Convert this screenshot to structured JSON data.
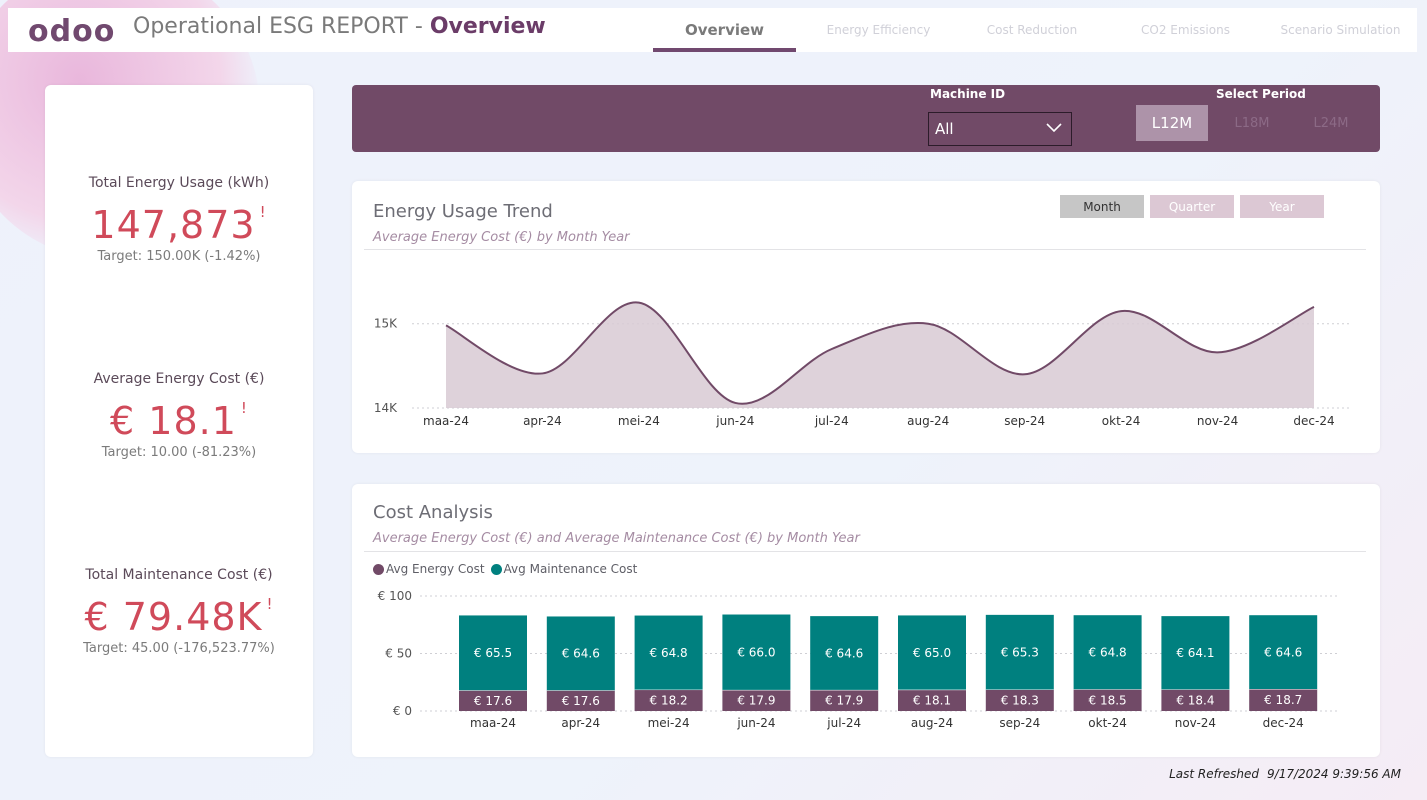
{
  "header": {
    "logo": "odoo",
    "title": "Operational ESG REPORT",
    "title_separator": " - ",
    "page": "Overview",
    "tabs": [
      "Overview",
      "Energy Efficiency",
      "Cost Reduction",
      "CO2 Emissions",
      "Scenario Simulation"
    ]
  },
  "kpis": [
    {
      "label": "Total Energy Usage (kWh)",
      "value": "147,873",
      "flag": "!",
      "target": "Target: 150.00K (-1.42%)"
    },
    {
      "label": "Average Energy Cost (€)",
      "value": "€ 18.1",
      "flag": "!",
      "target": "Target: 10.00 (-81.23%)"
    },
    {
      "label": "Total Maintenance Cost (€)",
      "value": "€ 79.48K",
      "flag": "!",
      "target": "Target: 45.00 (-176,523.77%)"
    }
  ],
  "filters": {
    "machine_label": "Machine ID",
    "machine_value": "All",
    "period_label": "Select Period",
    "periods": [
      "L12M",
      "L18M",
      "L24M"
    ],
    "selected_period": "L12M"
  },
  "energy_card": {
    "title": "Energy Usage Trend",
    "subtitle": "Average Energy Cost (€) by Month Year",
    "granularity": [
      "Month",
      "Quarter",
      "Year"
    ],
    "selected": "Month"
  },
  "cost_card": {
    "title": "Cost Analysis",
    "subtitle": "Average Energy Cost (€) and Average Maintenance Cost (€) by Month Year",
    "legend": [
      "Avg Energy Cost",
      "Avg Maintenance Cost"
    ]
  },
  "footer": {
    "label": "Last Refreshed",
    "timestamp": "9/17/2024 9:39:56 AM"
  },
  "colors": {
    "brand": "#714a67",
    "energy": "#714a67",
    "maintenance": "#00807f",
    "kpi": "#d04a5a",
    "area": "#d8cad3"
  },
  "chart_data": [
    {
      "type": "area",
      "title": "Energy Usage Trend",
      "subtitle": "Average Energy Cost (€) by Month Year",
      "categories": [
        "maa-24",
        "apr-24",
        "mei-24",
        "jun-24",
        "jul-24",
        "aug-24",
        "sep-24",
        "okt-24",
        "nov-24",
        "dec-24"
      ],
      "values": [
        14980,
        14410,
        15250,
        14060,
        14700,
        15000,
        14400,
        15150,
        14660,
        15200
      ],
      "yticks": [
        14000,
        15000
      ],
      "ytick_labels": [
        "14K",
        "15K"
      ],
      "ylim": [
        14000,
        15400
      ],
      "grid": true
    },
    {
      "type": "bar",
      "stacked": true,
      "title": "Cost Analysis",
      "subtitle": "Average Energy Cost (€) and Average Maintenance Cost (€) by Month Year",
      "categories": [
        "maa-24",
        "apr-24",
        "mei-24",
        "jun-24",
        "jul-24",
        "aug-24",
        "sep-24",
        "okt-24",
        "nov-24",
        "dec-24"
      ],
      "series": [
        {
          "name": "Avg Energy Cost",
          "values": [
            17.6,
            17.6,
            18.2,
            17.9,
            17.9,
            18.1,
            18.3,
            18.5,
            18.4,
            18.7
          ],
          "labels": [
            "€ 17.6",
            "€ 17.6",
            "€ 18.2",
            "€ 17.9",
            "€ 17.9",
            "€ 18.1",
            "€ 18.3",
            "€ 18.5",
            "€ 18.4",
            "€ 18.7"
          ]
        },
        {
          "name": "Avg Maintenance Cost",
          "values": [
            65.5,
            64.6,
            64.8,
            66.0,
            64.6,
            65.0,
            65.3,
            64.8,
            64.1,
            64.6
          ],
          "labels": [
            "€ 65.5",
            "€ 64.6",
            "€ 64.8",
            "€ 66.0",
            "€ 64.6",
            "€ 65.0",
            "€ 65.3",
            "€ 64.8",
            "€ 64.1",
            "€ 64.6"
          ]
        }
      ],
      "yticks": [
        0,
        50,
        100
      ],
      "ytick_labels": [
        "€ 0",
        "€ 50",
        "€ 100"
      ],
      "ylim": [
        0,
        100
      ],
      "legend": "top-left",
      "grid": true
    }
  ]
}
